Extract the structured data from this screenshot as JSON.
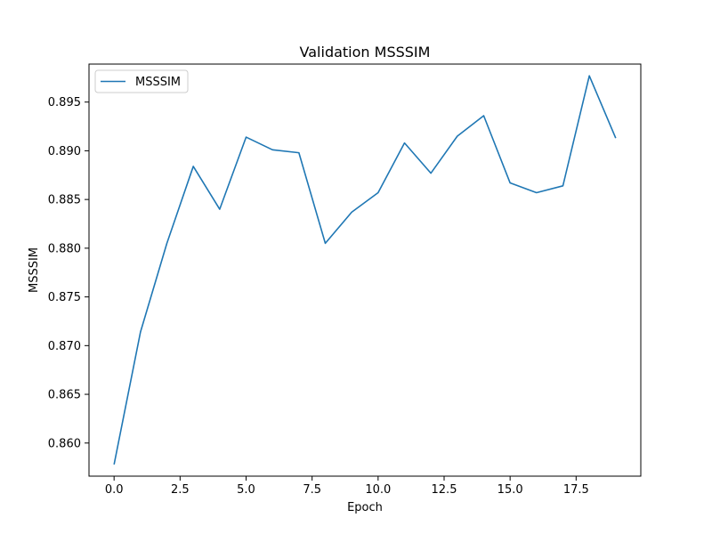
{
  "chart_data": {
    "type": "line",
    "title": "Validation MSSSIM",
    "xlabel": "Epoch",
    "ylabel": "MSSSIM",
    "xlim": [
      -0.95,
      19.95
    ],
    "ylim": [
      0.8566,
      0.8989
    ],
    "xticks": [
      0.0,
      2.5,
      5.0,
      7.5,
      10.0,
      12.5,
      15.0,
      17.5
    ],
    "xtick_labels": [
      "0.0",
      "2.5",
      "5.0",
      "7.5",
      "10.0",
      "12.5",
      "15.0",
      "17.5"
    ],
    "yticks": [
      0.86,
      0.865,
      0.87,
      0.875,
      0.88,
      0.885,
      0.89,
      0.895
    ],
    "ytick_labels": [
      "0.860",
      "0.865",
      "0.870",
      "0.875",
      "0.880",
      "0.885",
      "0.890",
      "0.895"
    ],
    "legend_position": "top-left",
    "grid": false,
    "series": [
      {
        "name": "MSSSIM",
        "color": "#1f77b4",
        "x": [
          0,
          1,
          2,
          3,
          4,
          5,
          6,
          7,
          8,
          9,
          10,
          11,
          12,
          13,
          14,
          15,
          16,
          17,
          18,
          19
        ],
        "values": [
          0.8578,
          0.8714,
          0.8805,
          0.8884,
          0.884,
          0.8914,
          0.8901,
          0.8898,
          0.8805,
          0.8837,
          0.8857,
          0.8908,
          0.8877,
          0.8915,
          0.8936,
          0.8867,
          0.8857,
          0.8864,
          0.8977,
          0.8913
        ]
      }
    ]
  }
}
